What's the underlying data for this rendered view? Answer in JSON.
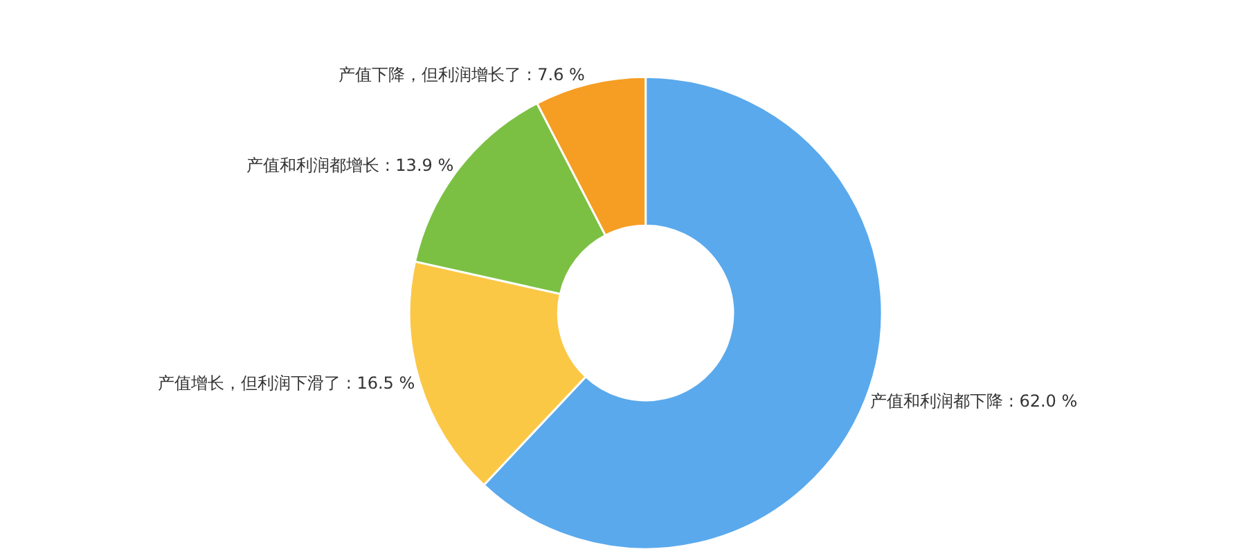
{
  "chart_data": {
    "type": "donut",
    "categories": [
      "产值和利润都下降",
      "产值增长，但利润下滑了",
      "产值和利润都增长",
      "产值下降，但利润增长了"
    ],
    "values": [
      62.0,
      16.5,
      13.9,
      7.6
    ],
    "value_labels": [
      "62.0 %",
      "16.5 %",
      "13.9 %",
      "7.6 %"
    ],
    "colors": [
      "#5aa9ec",
      "#fbc846",
      "#7bc043",
      "#f59e23"
    ],
    "legend": false
  }
}
